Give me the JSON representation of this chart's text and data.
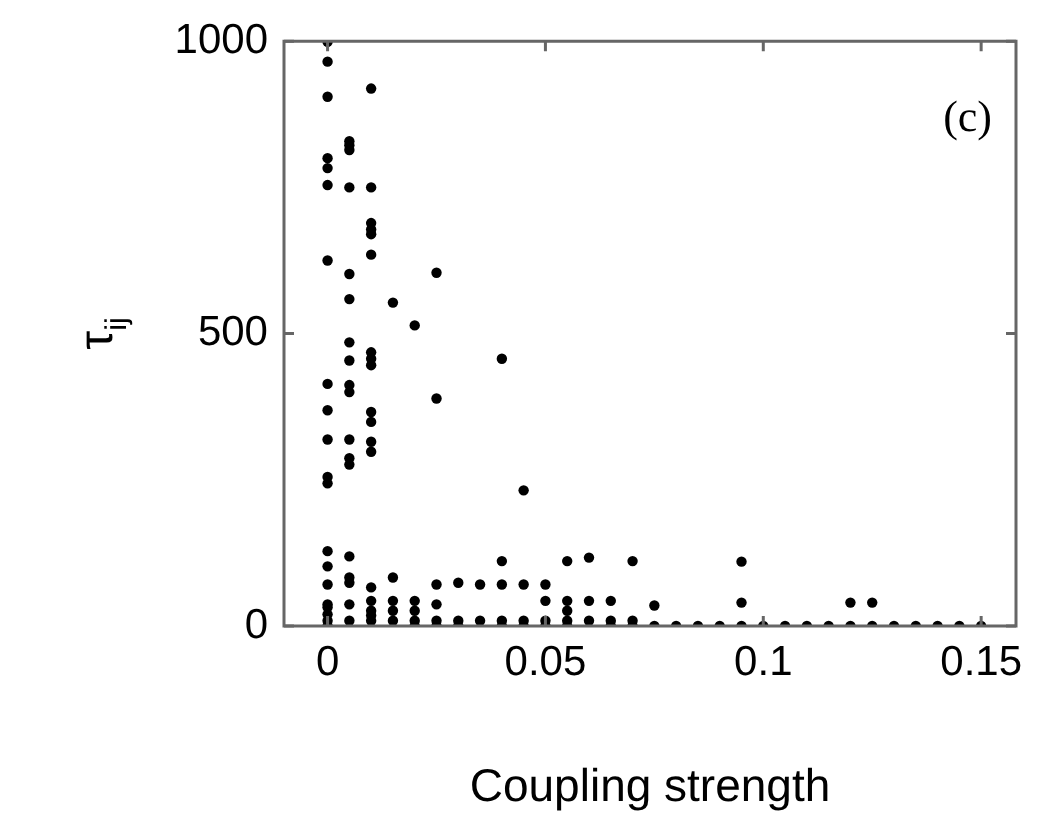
{
  "chart_data": {
    "type": "scatter",
    "xlabel": "Coupling strength",
    "ylabel": "τ$_{ij}$",
    "annotations": [
      "(c)"
    ],
    "marker": "circle",
    "grid": false,
    "legend": false,
    "xlim": [
      -0.01,
      0.158
    ],
    "xticks": [
      0,
      0.05,
      0.1,
      0.15
    ],
    "ylim": [
      0,
      1000
    ],
    "yticks": [
      0,
      500,
      1000
    ],
    "series": [
      {
        "color": "#000000",
        "x": [
          0,
          0,
          0,
          0,
          0,
          0,
          0,
          0,
          0,
          0,
          0,
          0,
          0,
          0,
          0,
          0,
          0,
          0,
          0,
          0,
          0.005,
          0.005,
          0.005,
          0.005,
          0.005,
          0.005,
          0.005,
          0.005,
          0.005,
          0.005,
          0.005,
          0.005,
          0.005,
          0.005,
          0.005,
          0.005,
          0.005,
          0.005,
          0.01,
          0.01,
          0.01,
          0.01,
          0.01,
          0.01,
          0.01,
          0.01,
          0.01,
          0.01,
          0.01,
          0.01,
          0.01,
          0.01,
          0.01,
          0.01,
          0.01,
          0.01,
          0.015,
          0.015,
          0.015,
          0.015,
          0.015,
          0.02,
          0.02,
          0.02,
          0.02,
          0.02,
          0.025,
          0.025,
          0.025,
          0.025,
          0.025,
          0.025,
          0.03,
          0.03,
          0.03,
          0.035,
          0.035,
          0.04,
          0.04,
          0.04,
          0.04,
          0.04,
          0.045,
          0.045,
          0.045,
          0.045,
          0.05,
          0.05,
          0.05,
          0.05,
          0.055,
          0.055,
          0.055,
          0.055,
          0.055,
          0.06,
          0.06,
          0.06,
          0.065,
          0.065,
          0.065,
          0.07,
          0.07,
          0.07,
          0.075,
          0.075,
          0.08,
          0.085,
          0.09,
          0.095,
          0.095,
          0.095,
          0.1,
          0.105,
          0.11,
          0.115,
          0.12,
          0.12,
          0.125,
          0.125,
          0.13,
          0.135,
          0.14,
          0.145,
          0.15
        ],
        "values": [
          999,
          965,
          905,
          800,
          783,
          754,
          625,
          414,
          369,
          319,
          255,
          244,
          128,
          102,
          71,
          37,
          32,
          0,
          9,
          20,
          829,
          822,
          814,
          750,
          602,
          559,
          485,
          454,
          412,
          400,
          319,
          287,
          276,
          119,
          83,
          74,
          37,
          9,
          919,
          750,
          689,
          678,
          670,
          635,
          468,
          457,
          446,
          366,
          349,
          315,
          298,
          66,
          43,
          26,
          9,
          18,
          553,
          83,
          43,
          26,
          9,
          514,
          43,
          26,
          9,
          0,
          604,
          389,
          71,
          37,
          9,
          0,
          74,
          9,
          0,
          71,
          9,
          457,
          111,
          71,
          9,
          0,
          232,
          71,
          9,
          0,
          71,
          43,
          9,
          0,
          111,
          43,
          26,
          9,
          0,
          117,
          43,
          9,
          43,
          9,
          0,
          111,
          9,
          0,
          35,
          0,
          0,
          0,
          0,
          110,
          40,
          0,
          0,
          0,
          0,
          0,
          40,
          0,
          40,
          0,
          0,
          0,
          0,
          0,
          0
        ]
      }
    ]
  }
}
